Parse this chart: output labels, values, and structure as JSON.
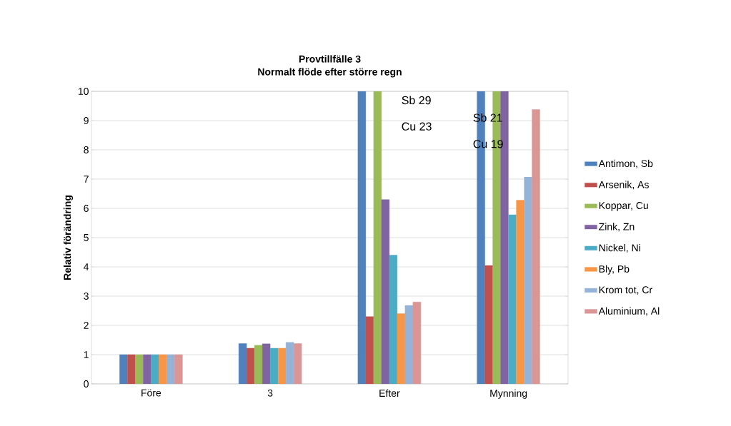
{
  "chart_data": {
    "type": "bar",
    "title": "Provtillfälle 3",
    "subtitle": "Normalt flöde efter större regn",
    "ylabel": "Relativ förändring",
    "categories": [
      "Före",
      "3",
      "Efter",
      "Mynning"
    ],
    "series": [
      {
        "name": "Antimon, Sb",
        "color": "#4f81bd",
        "values": [
          1.0,
          1.38,
          10,
          10
        ]
      },
      {
        "name": "Arsenik, As",
        "color": "#c0504d",
        "values": [
          1.0,
          1.22,
          2.3,
          4.05
        ]
      },
      {
        "name": "Koppar, Cu",
        "color": "#9bbb59",
        "values": [
          1.0,
          1.32,
          10,
          10
        ]
      },
      {
        "name": "Zink, Zn",
        "color": "#8064a2",
        "values": [
          1.0,
          1.37,
          6.3,
          10
        ]
      },
      {
        "name": "Nickel, Ni",
        "color": "#4bacc6",
        "values": [
          1.0,
          1.22,
          4.4,
          5.78
        ]
      },
      {
        "name": "Bly, Pb",
        "color": "#f79646",
        "values": [
          1.0,
          1.22,
          2.4,
          6.28
        ]
      },
      {
        "name": "Krom tot, Cr",
        "color": "#95b3d7",
        "values": [
          1.0,
          1.42,
          2.68,
          7.07
        ]
      },
      {
        "name": "Aluminium, Al",
        "color": "#d99694",
        "values": [
          1.0,
          1.38,
          2.8,
          9.38
        ]
      }
    ],
    "ylim": [
      0,
      10
    ],
    "yticks": [
      0,
      1,
      2,
      3,
      4,
      5,
      6,
      7,
      8,
      9,
      10
    ],
    "grid": "y",
    "legend": "right",
    "annotations": [
      "Sb 29",
      "Cu 23",
      "Sb 21",
      "Cu 19"
    ]
  }
}
